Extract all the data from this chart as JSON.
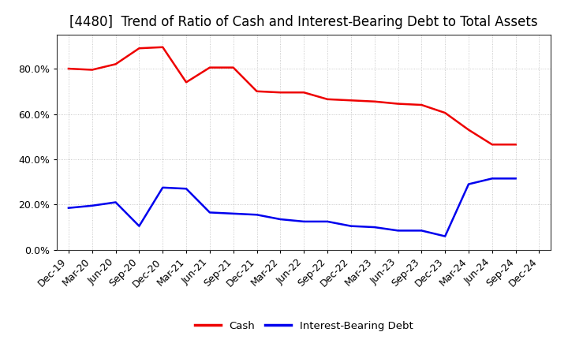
{
  "title": "[4480]  Trend of Ratio of Cash and Interest-Bearing Debt to Total Assets",
  "x_labels": [
    "Dec-19",
    "Mar-20",
    "Jun-20",
    "Sep-20",
    "Dec-20",
    "Mar-21",
    "Jun-21",
    "Sep-21",
    "Dec-21",
    "Mar-22",
    "Jun-22",
    "Sep-22",
    "Dec-22",
    "Mar-23",
    "Jun-23",
    "Sep-23",
    "Dec-23",
    "Mar-24",
    "Jun-24",
    "Sep-24",
    "Dec-24"
  ],
  "cash": [
    0.8,
    0.795,
    0.82,
    0.89,
    0.895,
    0.74,
    0.805,
    0.805,
    0.7,
    0.695,
    0.695,
    0.665,
    0.66,
    0.655,
    0.645,
    0.64,
    0.605,
    0.53,
    0.465,
    0.465,
    null
  ],
  "debt": [
    0.185,
    0.195,
    0.21,
    0.105,
    0.275,
    0.27,
    0.165,
    0.16,
    0.155,
    0.135,
    0.125,
    0.125,
    0.105,
    0.1,
    0.085,
    0.085,
    0.06,
    0.29,
    0.315,
    0.315,
    null
  ],
  "cash_color": "#EE0000",
  "debt_color": "#0000EE",
  "background_color": "#FFFFFF",
  "plot_bg_color": "#FFFFFF",
  "grid_color": "#BBBBBB",
  "ylim": [
    0.0,
    0.95
  ],
  "ytick_values": [
    0.0,
    0.2,
    0.4,
    0.6,
    0.8
  ],
  "ytick_labels": [
    "0.0%",
    "20.0%",
    "40.0%",
    "60.0%",
    "80.0%"
  ],
  "legend_labels": [
    "Cash",
    "Interest-Bearing Debt"
  ],
  "title_fontsize": 12,
  "label_fontsize": 9.5,
  "tick_fontsize": 9,
  "line_width": 1.8
}
